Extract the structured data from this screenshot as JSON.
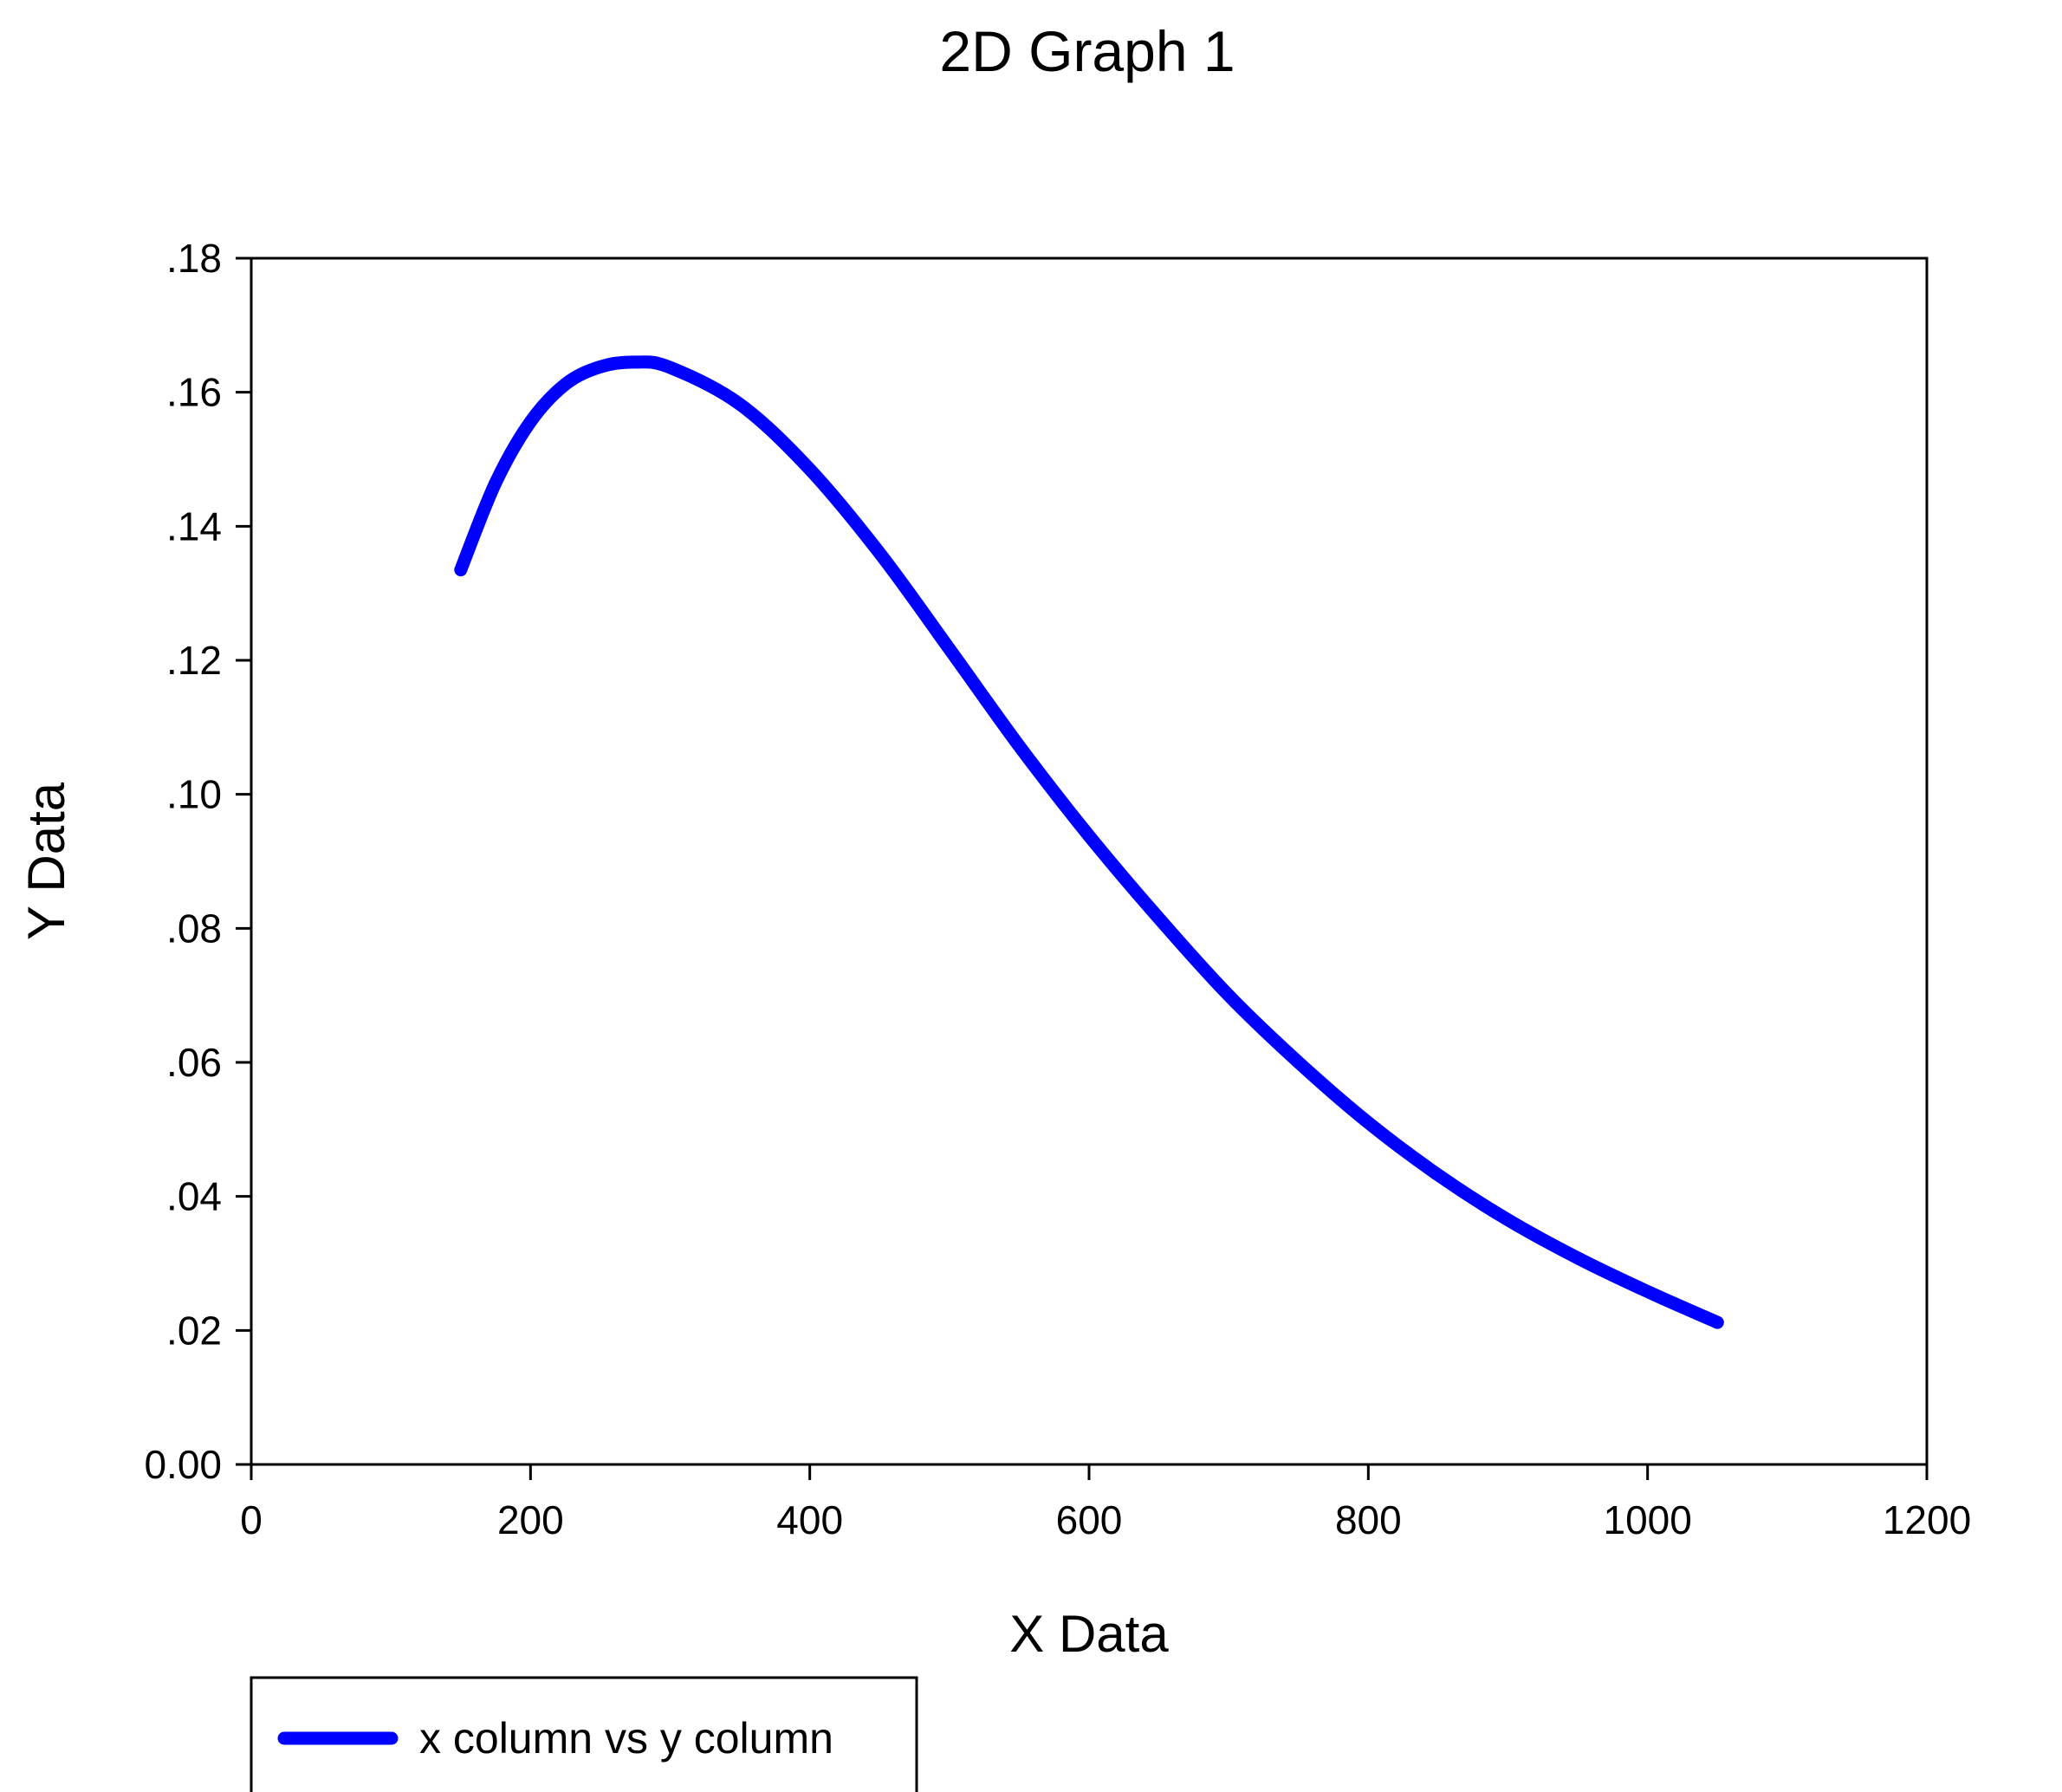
{
  "chart_data": {
    "type": "line",
    "title": "2D Graph 1",
    "xlabel": "X Data",
    "ylabel": "Y Data",
    "xlim": [
      0,
      1200
    ],
    "ylim": [
      0,
      0.18
    ],
    "x_ticks": [
      0,
      200,
      400,
      600,
      800,
      1000,
      1200
    ],
    "x_tick_labels": [
      "0",
      "200",
      "400",
      "600",
      "800",
      "1000",
      "1200"
    ],
    "y_ticks": [
      0,
      0.02,
      0.04,
      0.06,
      0.08,
      0.1,
      0.12,
      0.14,
      0.16,
      0.18
    ],
    "y_tick_labels": [
      "0.00",
      ".02",
      ".04",
      ".06",
      ".08",
      ".10",
      ".12",
      ".14",
      ".16",
      ".18"
    ],
    "grid": false,
    "legend": {
      "position": "bottom-left",
      "entries": [
        "x column vs y column"
      ]
    },
    "series": [
      {
        "name": "x column vs y column",
        "color": "#0000ff",
        "x": [
          150,
          175,
          200,
          225,
          250,
          275,
          300,
          350,
          400,
          450,
          500,
          550,
          600,
          650,
          700,
          750,
          800,
          850,
          900,
          950,
          1000,
          1050
        ],
        "y": [
          0.1335,
          0.1465,
          0.1556,
          0.1612,
          0.1638,
          0.1645,
          0.1637,
          0.1582,
          0.1485,
          0.136,
          0.1217,
          0.1072,
          0.0938,
          0.0815,
          0.07,
          0.06,
          0.051,
          0.0432,
          0.0365,
          0.0308,
          0.0258,
          0.0212
        ]
      }
    ]
  }
}
